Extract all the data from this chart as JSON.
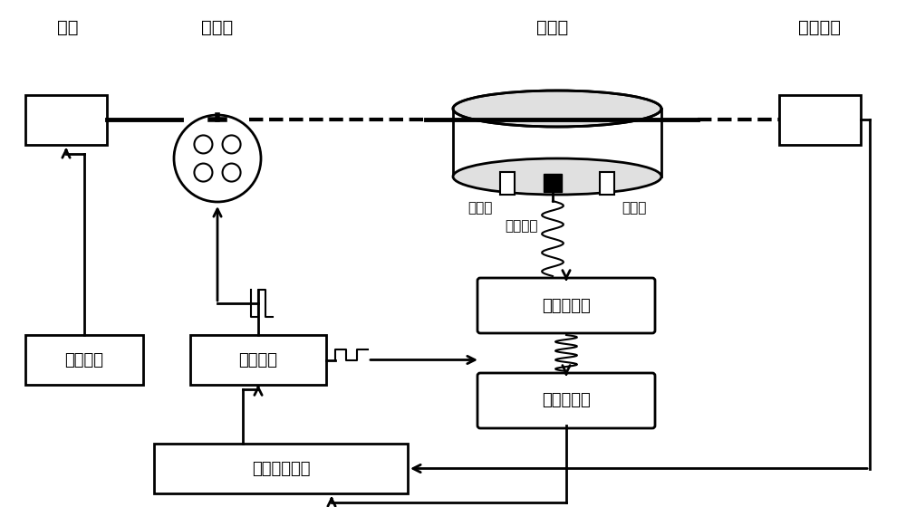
{
  "bg_color": "#ffffff",
  "line_color": "#000000",
  "box_color": "#ffffff",
  "fig_width": 10.0,
  "fig_height": 5.6,
  "labels": {
    "guangyuan": "光源",
    "zhanboqi": "斩波器",
    "guangshengchi": "光声池",
    "guanggonglvji": "光功率计",
    "jinqikou": "进气口",
    "chiqikou": "出气口",
    "guangshengxinhao": "光声信号",
    "qianzhi": "前置放大器",
    "suoxiang": "锁相放大器",
    "guangyuankongzhi": "光源控制",
    "tiaozhi": "调制频率",
    "shuzi": "数字信号处理"
  }
}
